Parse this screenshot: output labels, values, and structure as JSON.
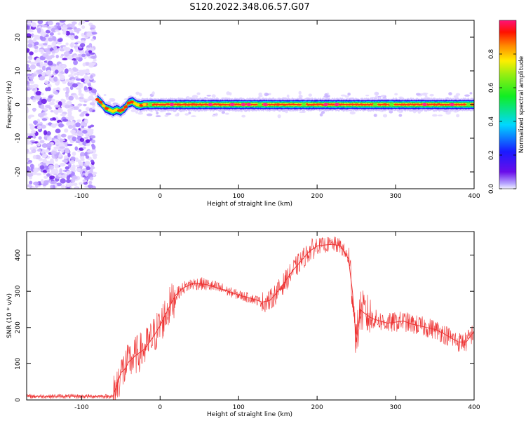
{
  "title": "S120.2022.348.06.57.G07",
  "chart_data": [
    {
      "type": "heatmap",
      "xlabel": "Height of straight line (km)",
      "ylabel": "Frequency (Hz)",
      "xlim": [
        -170,
        400
      ],
      "ylim": [
        -25,
        25
      ],
      "xticks": [
        -100,
        0,
        100,
        200,
        300,
        400
      ],
      "yticks": [
        -20,
        -10,
        0,
        10,
        20
      ],
      "colorbar": {
        "label": "Normalized spectral amplitude",
        "range": [
          0,
          1
        ],
        "ticks": [
          "0.0",
          "0.2",
          "0.4",
          "0.6",
          "0.8"
        ],
        "colormap": "rainbow (purple-blue-cyan-green-yellow-red-magenta)"
      },
      "dominant_frequency_track": {
        "x": [
          -80,
          -75,
          -70,
          -65,
          -60,
          -55,
          -50,
          -45,
          -40,
          -35,
          -30,
          -25,
          -20,
          0,
          100,
          200,
          300,
          400
        ],
        "y": [
          1.5,
          0.5,
          -1.0,
          -1.5,
          -2.0,
          -1.5,
          -2.0,
          -1.0,
          0.5,
          0.8,
          0.0,
          -0.3,
          0.0,
          0.0,
          0.0,
          0.0,
          0.0,
          0.0
        ]
      },
      "noise_region_x": [
        -170,
        -83
      ]
    },
    {
      "type": "line",
      "xlabel": "Height of straight line (km)",
      "ylabel": "SNR (10 * v/v)",
      "xlim": [
        -170,
        400
      ],
      "ylim": [
        0,
        465
      ],
      "xticks": [
        -100,
        0,
        100,
        200,
        300,
        400
      ],
      "yticks": [
        0,
        100,
        200,
        300,
        400
      ],
      "series": [
        {
          "color": "#ee3333",
          "x": [
            -170,
            -100,
            -60,
            -55,
            -50,
            -45,
            -40,
            -30,
            -20,
            -10,
            0,
            10,
            20,
            30,
            40,
            50,
            60,
            80,
            100,
            120,
            130,
            140,
            150,
            160,
            170,
            180,
            190,
            200,
            210,
            220,
            230,
            240,
            245,
            250,
            255,
            260,
            270,
            280,
            290,
            300,
            310,
            320,
            330,
            340,
            350,
            360,
            370,
            380,
            390,
            400
          ],
          "y": [
            10,
            10,
            10,
            40,
            75,
            85,
            105,
            125,
            140,
            170,
            205,
            250,
            290,
            310,
            320,
            322,
            318,
            305,
            290,
            278,
            270,
            275,
            300,
            330,
            360,
            385,
            410,
            425,
            428,
            430,
            425,
            390,
            300,
            160,
            250,
            240,
            225,
            218,
            212,
            215,
            218,
            210,
            205,
            200,
            195,
            185,
            172,
            160,
            160,
            190
          ]
        }
      ]
    }
  ]
}
